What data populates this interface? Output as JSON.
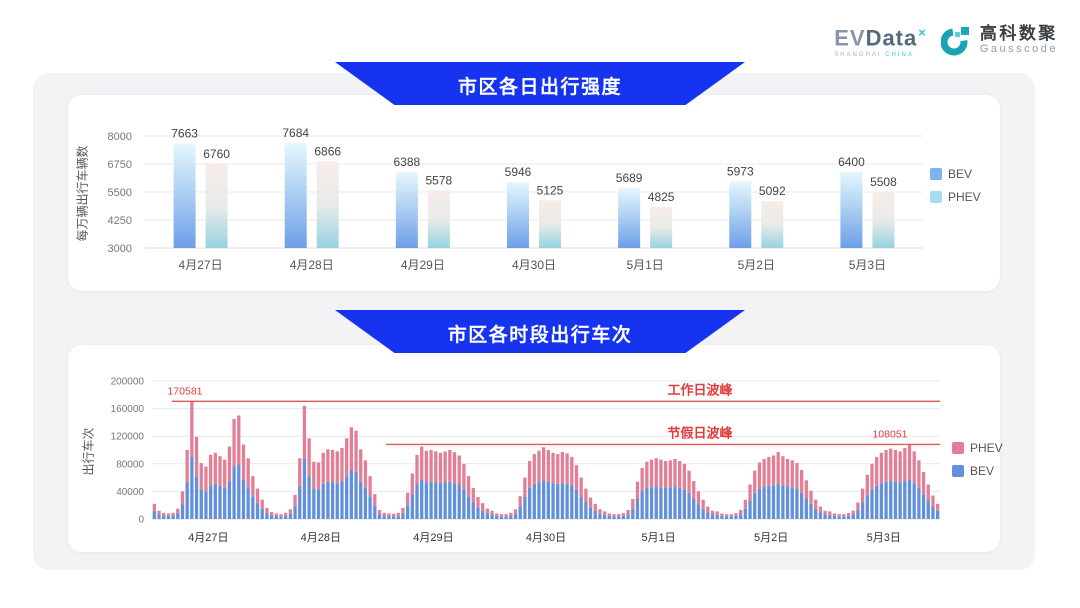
{
  "logo": {
    "evdata_main_1": "EV",
    "evdata_main_2": "Data",
    "evdata_sup": "×",
    "evdata_sub_1": "SHANGHAI",
    "evdata_sub_2": "CHINA",
    "gausscode_cn": "高科数聚",
    "gausscode_en": "Gausscode"
  },
  "colors": {
    "banner_blue": "#1634f0",
    "bev_top_legend": "#7cb3ec",
    "phev_top_legend": "#a6ddee",
    "bev_bottom": "#6290da",
    "phev_bottom": "#e27e95",
    "peak_line": "#e25757",
    "annotation_red": "#e13c3c",
    "bev_gradient": [
      "#e6f7fd",
      "#a9cdf1",
      "#6d9ee9"
    ],
    "phev_gradient": [
      "#f7ece8",
      "#e9ebe9",
      "#95d3e1"
    ]
  },
  "chart_data": [
    {
      "type": "bar",
      "title": "市区各日出行强度",
      "ylabel": "每万辆出行车辆数",
      "ylim": [
        3000,
        8000
      ],
      "yticks": [
        3000,
        4250,
        5500,
        6750,
        8000
      ],
      "legend_position": "right",
      "categories": [
        "4月27日",
        "4月28日",
        "4月29日",
        "4月30日",
        "5月1日",
        "5月2日",
        "5月3日"
      ],
      "series": [
        {
          "name": "BEV",
          "values": [
            7663,
            7684,
            6388,
            5946,
            5689,
            5973,
            6400
          ]
        },
        {
          "name": "PHEV",
          "values": [
            6760,
            6866,
            5578,
            5125,
            4825,
            5092,
            5508
          ]
        }
      ]
    },
    {
      "type": "bar",
      "stacked": true,
      "title": "市区各时段出行车次",
      "ylabel": "出行车次",
      "ylim": [
        0,
        200000
      ],
      "yticks": [
        0,
        40000,
        80000,
        120000,
        160000,
        200000
      ],
      "legend_position": "right",
      "series_names": [
        "BEV",
        "PHEV"
      ],
      "annotations": [
        {
          "name": "workday-peak",
          "label": "工作日波峰",
          "value": 170581,
          "value_text": "170581"
        },
        {
          "name": "holiday-peak",
          "label": "节假日波峰",
          "value": 108051,
          "value_text": "108051"
        }
      ],
      "days": [
        {
          "label": "4月27日",
          "bev": [
            12000,
            7000,
            5000,
            4500,
            5000,
            8000,
            21000,
            53000,
            91000,
            62000,
            43000,
            40000,
            49000,
            51000,
            48000,
            45000,
            55000,
            76000,
            79000,
            57000,
            46000,
            33000,
            23000,
            15000
          ],
          "phev": [
            10000,
            5000,
            4000,
            3500,
            4000,
            7000,
            19000,
            47000,
            79581,
            57000,
            38000,
            36000,
            44000,
            45000,
            43000,
            41000,
            50000,
            69000,
            71000,
            51000,
            42000,
            29000,
            21000,
            13000
          ]
        },
        {
          "label": "4月28日",
          "bev": [
            8500,
            5500,
            4300,
            3800,
            4800,
            7500,
            19000,
            47000,
            88000,
            62000,
            44000,
            43000,
            51000,
            54000,
            53000,
            52000,
            55000,
            62000,
            71000,
            68000,
            54000,
            45000,
            33000,
            19000
          ],
          "phev": [
            7500,
            4500,
            3700,
            3200,
            4200,
            6500,
            16000,
            41000,
            76000,
            55000,
            39000,
            39000,
            45000,
            47000,
            47000,
            46000,
            48000,
            55000,
            62000,
            60000,
            47000,
            40000,
            29000,
            17000
          ]
        },
        {
          "label": "4月29日",
          "bev": [
            7000,
            5000,
            4300,
            4000,
            4800,
            8500,
            20000,
            36000,
            50000,
            57000,
            53000,
            54000,
            53000,
            52000,
            53000,
            54000,
            52000,
            50000,
            43000,
            33000,
            24000,
            17000,
            12000,
            8000
          ],
          "phev": [
            6000,
            4000,
            3700,
            3500,
            4200,
            7500,
            18000,
            30000,
            43000,
            48000,
            46000,
            46000,
            45000,
            44000,
            45000,
            46000,
            45000,
            42000,
            37000,
            29000,
            21000,
            15000,
            11000,
            7000
          ]
        },
        {
          "label": "4月30日",
          "bev": [
            6500,
            4300,
            3800,
            3800,
            4800,
            7500,
            18000,
            32000,
            45000,
            51000,
            53000,
            56000,
            54000,
            52000,
            51000,
            52000,
            51000,
            49000,
            42000,
            32000,
            24000,
            17000,
            12000,
            7500
          ],
          "phev": [
            5500,
            3700,
            3200,
            3200,
            4200,
            6500,
            15000,
            28000,
            39000,
            43000,
            46000,
            48000,
            46000,
            44000,
            43000,
            45000,
            44000,
            41000,
            36000,
            28000,
            20000,
            14000,
            10000,
            6500
          ]
        },
        {
          "label": "5月1日",
          "bev": [
            6000,
            4300,
            3800,
            3800,
            4500,
            7000,
            15500,
            29000,
            40000,
            45000,
            46000,
            47000,
            46000,
            45000,
            46000,
            47000,
            45000,
            43000,
            38000,
            30000,
            21500,
            15000,
            9500,
            6500
          ],
          "phev": [
            5000,
            3700,
            3200,
            3200,
            4000,
            6000,
            13500,
            25000,
            34000,
            38000,
            40000,
            41000,
            40000,
            39000,
            39000,
            40000,
            39000,
            37000,
            32000,
            25000,
            18500,
            13000,
            8500,
            5500
          ]
        },
        {
          "label": "5月2日",
          "bev": [
            6000,
            4300,
            3800,
            3800,
            4500,
            7000,
            15000,
            27000,
            38000,
            44000,
            47000,
            48000,
            49000,
            52000,
            49000,
            47000,
            46000,
            44000,
            38000,
            30000,
            22000,
            15000,
            9500,
            6500
          ],
          "phev": [
            5000,
            3700,
            3200,
            3200,
            4000,
            6000,
            13000,
            23000,
            32000,
            38000,
            40000,
            42000,
            43000,
            45000,
            42000,
            40000,
            39000,
            37000,
            33000,
            26000,
            19000,
            13000,
            8500,
            5500
          ]
        },
        {
          "label": "5月3日",
          "bev": [
            6000,
            4300,
            3800,
            3800,
            4500,
            6500,
            13000,
            24000,
            34000,
            43000,
            48000,
            52000,
            54000,
            55000,
            54000,
            53000,
            55000,
            57000,
            52000,
            45000,
            36000,
            27000,
            18000,
            12000
          ],
          "phev": [
            5000,
            3700,
            3200,
            3200,
            4000,
            5500,
            11000,
            20000,
            30000,
            37000,
            42000,
            44000,
            46000,
            47000,
            46000,
            45000,
            48000,
            51051,
            46000,
            40000,
            32000,
            23000,
            16000,
            10000
          ]
        }
      ]
    }
  ]
}
